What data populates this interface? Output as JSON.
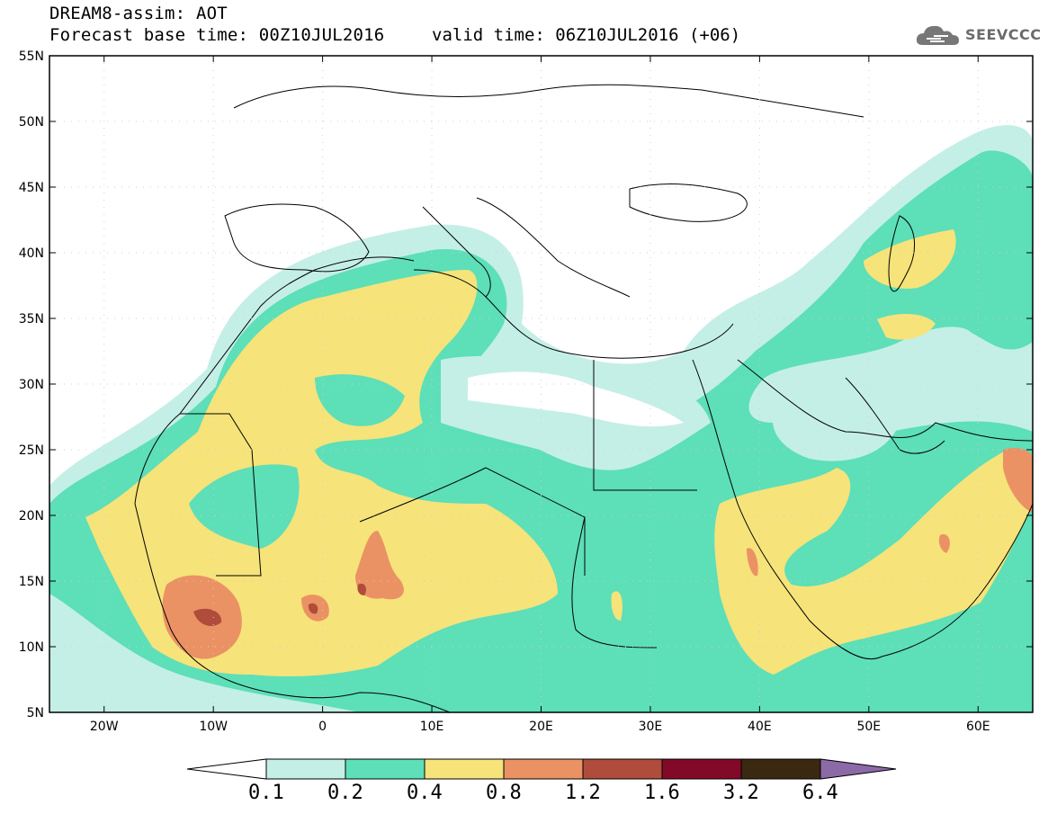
{
  "header": {
    "title_line1": "DREAM8-assim: AOT",
    "title_line2": "Forecast base time: 00Z10JUL2016",
    "valid_time": "valid time: 06Z10JUL2016 (+06)",
    "logo_text": "SEEVCCC"
  },
  "map": {
    "lon_labels": [
      "20W",
      "10W",
      "0",
      "10E",
      "20E",
      "30E",
      "40E",
      "50E",
      "60E"
    ],
    "lat_labels": [
      "55N",
      "50N",
      "45N",
      "40N",
      "35N",
      "30N",
      "25N",
      "20N",
      "15N",
      "10N",
      "5N"
    ],
    "background_color": "#ffffff",
    "coastline_color": "#000000"
  },
  "colorbar": {
    "levels": [
      "0.1",
      "0.2",
      "0.4",
      "0.8",
      "1.2",
      "1.6",
      "3.2",
      "6.4"
    ],
    "colors": [
      "#ffffff",
      "#c4efe6",
      "#5ddfb8",
      "#f6e37a",
      "#eb9264",
      "#b04c3c",
      "#820a28",
      "#3a2810",
      "#8c6aa8"
    ]
  },
  "legend_ranges": [
    "<0.1",
    "0.1-0.2",
    "0.2-0.4",
    "0.4-0.8",
    "0.8-1.2",
    "1.2-1.6",
    "1.6-3.2",
    "3.2-6.4",
    ">6.4"
  ]
}
